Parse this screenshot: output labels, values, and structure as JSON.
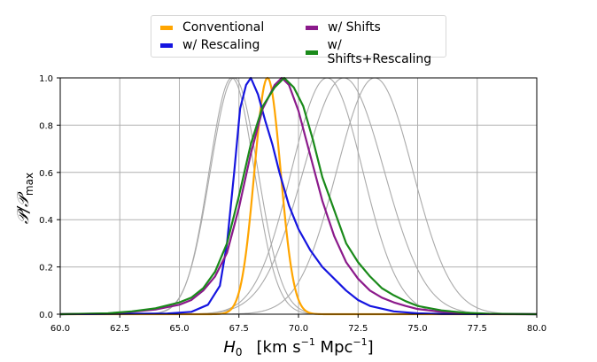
{
  "chart_data": {
    "type": "line",
    "xlabel_main": "H",
    "xlabel_sub": "0",
    "xlabel_units": "[km s",
    "xlabel_units_sup": "−1",
    "xlabel_units_mid": " Mpc",
    "xlabel_units_sup2": "−1",
    "xlabel_units_end": "]",
    "ylabel": "P / P_max",
    "ylabel_main": "𝒫/𝒫",
    "ylabel_sub": "max",
    "xlim": [
      60.0,
      80.0
    ],
    "ylim": [
      0.0,
      1.0
    ],
    "xticks": [
      "60.0",
      "62.5",
      "65.0",
      "67.5",
      "70.0",
      "72.5",
      "75.0",
      "77.5",
      "80.0"
    ],
    "yticks": [
      "0.0",
      "0.2",
      "0.4",
      "0.6",
      "0.8",
      "1.0"
    ],
    "grid": true,
    "legend_position": "top-center",
    "series": [
      {
        "name": "Conventional",
        "color": "#FFA500",
        "type": "gaussian",
        "mu": 68.7,
        "sigma": 0.55
      },
      {
        "name": "w/ Rescaling",
        "color": "#1515E0",
        "type": "points",
        "x": [
          60,
          64.5,
          65.5,
          66.2,
          66.7,
          67.0,
          67.3,
          67.55,
          67.8,
          68.0,
          68.3,
          68.6,
          68.9,
          69.2,
          69.6,
          70.0,
          70.5,
          71.0,
          71.5,
          72.0,
          72.5,
          73.0,
          74.0,
          75.0,
          76.0,
          80
        ],
        "y": [
          0,
          0.003,
          0.01,
          0.04,
          0.12,
          0.3,
          0.6,
          0.87,
          0.97,
          1.0,
          0.93,
          0.82,
          0.72,
          0.6,
          0.46,
          0.36,
          0.27,
          0.2,
          0.15,
          0.1,
          0.06,
          0.035,
          0.012,
          0.004,
          0.001,
          0
        ]
      },
      {
        "name": "w/ Shifts",
        "color": "#8B1A8B",
        "type": "points",
        "x": [
          60,
          62,
          63,
          64,
          65,
          65.5,
          66,
          66.5,
          67,
          67.5,
          68,
          68.5,
          69,
          69.3,
          69.6,
          70,
          70.5,
          71,
          71.5,
          72,
          72.5,
          73,
          73.5,
          74,
          74.5,
          75,
          76,
          77,
          78,
          80
        ],
        "y": [
          0,
          0.003,
          0.01,
          0.02,
          0.04,
          0.06,
          0.1,
          0.16,
          0.26,
          0.45,
          0.68,
          0.87,
          0.97,
          1.0,
          0.97,
          0.86,
          0.67,
          0.48,
          0.33,
          0.22,
          0.15,
          0.1,
          0.07,
          0.05,
          0.035,
          0.022,
          0.01,
          0.004,
          0.001,
          0
        ]
      },
      {
        "name": "w/ Shifts+Rescaling",
        "color": "#1A8A1A",
        "type": "points",
        "x": [
          60,
          62,
          63,
          64,
          65,
          65.5,
          66,
          66.5,
          67,
          67.5,
          68,
          68.5,
          69,
          69.4,
          69.8,
          70.2,
          70.6,
          71,
          71.5,
          72,
          72.5,
          73,
          73.5,
          74,
          74.5,
          75,
          76,
          77,
          78,
          80
        ],
        "y": [
          0,
          0.004,
          0.012,
          0.025,
          0.05,
          0.07,
          0.11,
          0.18,
          0.3,
          0.5,
          0.72,
          0.88,
          0.96,
          1.0,
          0.96,
          0.88,
          0.74,
          0.58,
          0.44,
          0.3,
          0.22,
          0.16,
          0.11,
          0.08,
          0.055,
          0.035,
          0.016,
          0.006,
          0.002,
          0
        ]
      },
      {
        "name": "reference-1",
        "color": "#AAAAAA",
        "type": "gaussian",
        "mu": 67.2,
        "sigma": 0.95
      },
      {
        "name": "reference-2",
        "color": "#AAAAAA",
        "type": "gaussian",
        "mu": 67.3,
        "sigma": 1.0
      },
      {
        "name": "reference-3",
        "color": "#AAAAAA",
        "type": "gaussian",
        "mu": 71.2,
        "sigma": 1.5
      },
      {
        "name": "reference-4",
        "color": "#AAAAAA",
        "type": "gaussian",
        "mu": 71.9,
        "sigma": 1.7
      },
      {
        "name": "reference-5",
        "color": "#AAAAAA",
        "type": "gaussian",
        "mu": 73.2,
        "sigma": 1.6
      }
    ],
    "legend": [
      {
        "label": "Conventional",
        "color": "#FFA500"
      },
      {
        "label": "w/ Shifts",
        "color": "#8B1A8B"
      },
      {
        "label": "w/ Rescaling",
        "color": "#1515E0"
      },
      {
        "label": "w/ Shifts+Rescaling",
        "color": "#1A8A1A"
      }
    ]
  }
}
